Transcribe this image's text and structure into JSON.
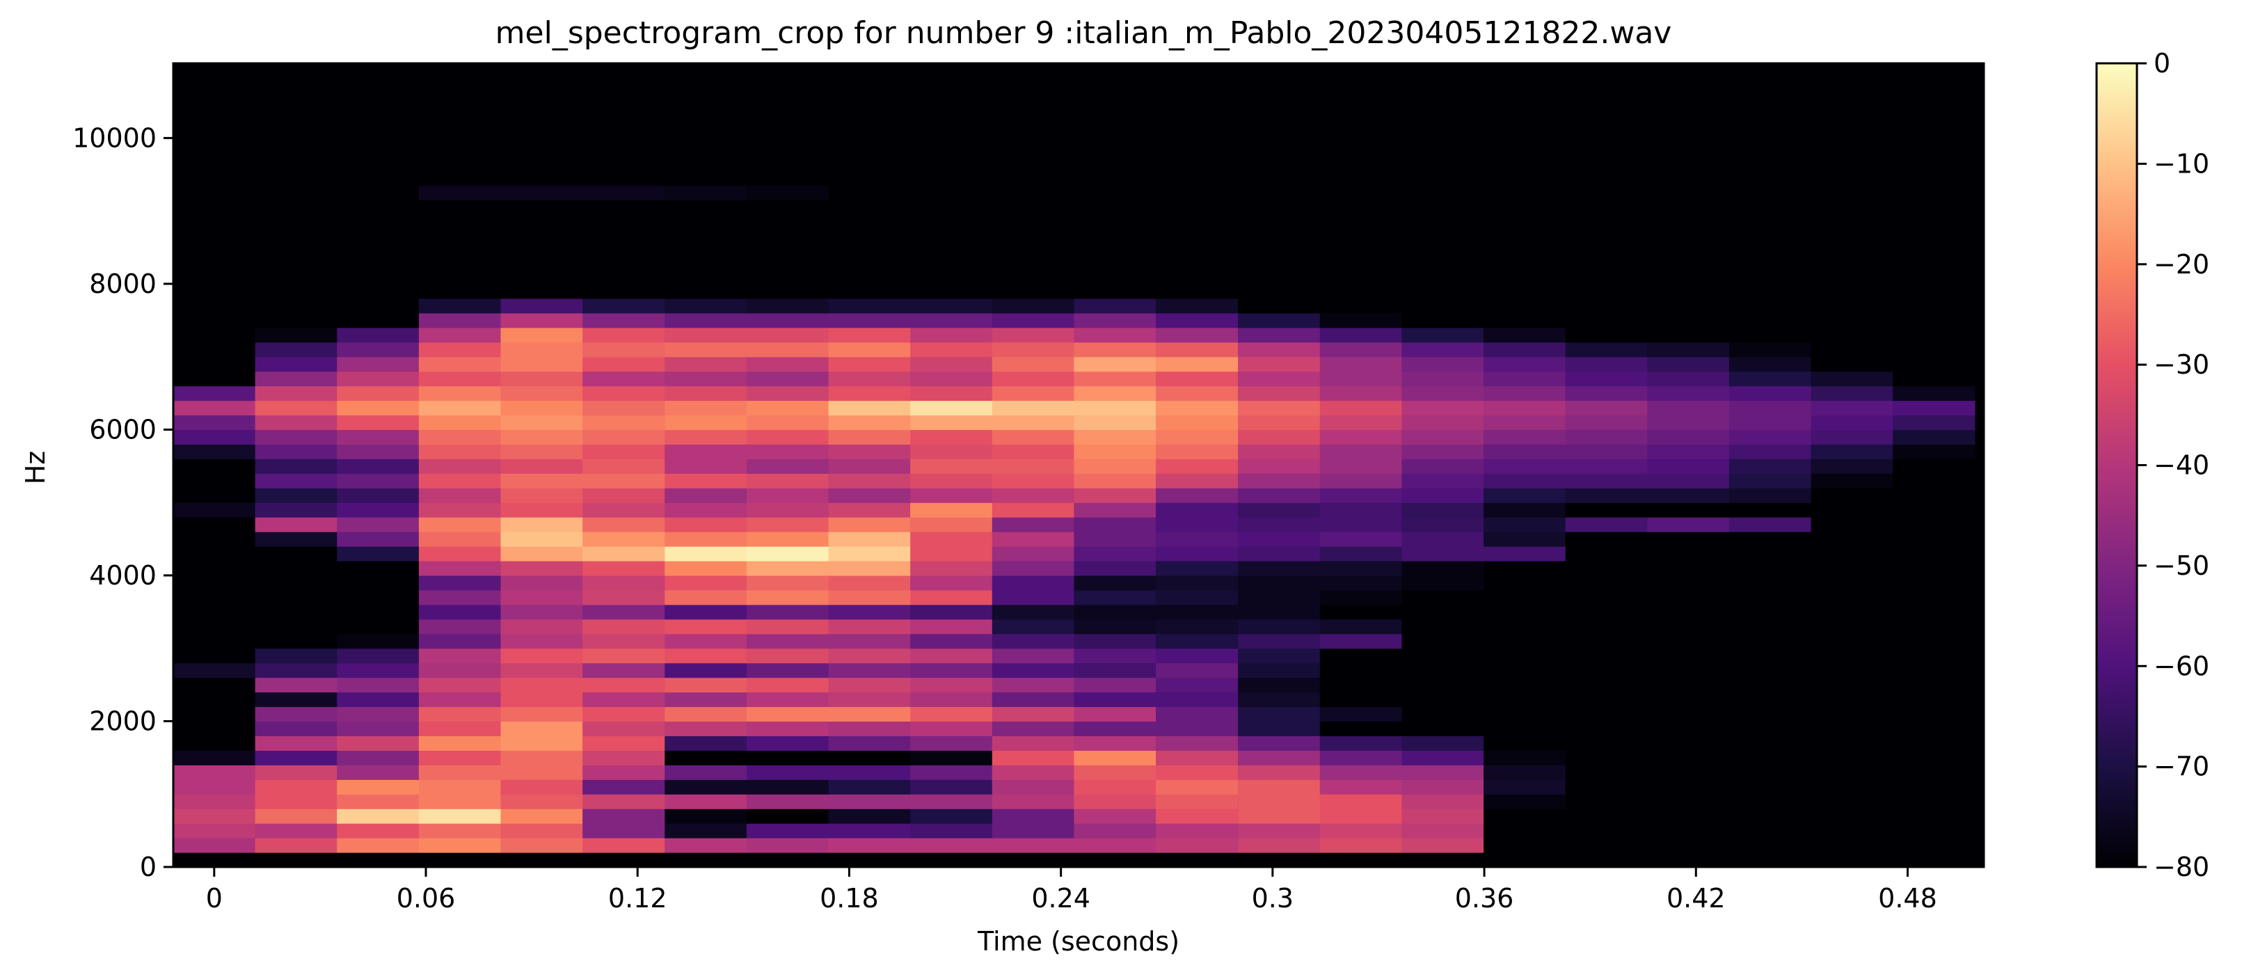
{
  "chart_data": {
    "type": "heatmap",
    "title": "mel_spectrogram_crop for number 9 :italian_m_Pablo_20230405121822.wav",
    "xlabel": "Time (seconds)",
    "ylabel": "Hz",
    "xlim": [
      -0.0116,
      0.5016
    ],
    "ylim": [
      0,
      11025
    ],
    "xticks": [
      "0",
      "0.06",
      "0.12",
      "0.18",
      "0.24",
      "0.3",
      "0.36",
      "0.42",
      "0.48"
    ],
    "xtick_values": [
      0,
      0.06,
      0.12,
      0.18,
      0.24,
      0.3,
      0.36,
      0.42,
      0.48
    ],
    "yticks": [
      "0",
      "2000",
      "4000",
      "6000",
      "8000",
      "10000"
    ],
    "ytick_values": [
      0,
      2000,
      4000,
      6000,
      8000,
      10000
    ],
    "colorbar": {
      "range": [
        -80,
        0
      ],
      "ticks": [
        "0",
        "−10",
        "−20",
        "−30",
        "−40",
        "−50",
        "−60",
        "−70",
        "−80"
      ],
      "tick_values": [
        0,
        -10,
        -20,
        -30,
        -40,
        -50,
        -60,
        -70,
        -80
      ],
      "colormap": "magma"
    },
    "columns_time_start": [
      -0.0116,
      0.0116,
      0.0348,
      0.058,
      0.0812,
      0.1044,
      0.1277,
      0.1509,
      0.1741,
      0.1973,
      0.2205,
      0.2437,
      0.2669,
      0.2902,
      0.3134,
      0.3366,
      0.3598,
      0.383,
      0.4062,
      0.4294,
      0.4526,
      0.4758
    ],
    "column_width_s": 0.02322,
    "bands": [
      {
        "f0": 0,
        "f1": 200,
        "db": [
          -80,
          -80,
          -80,
          -80,
          -80,
          -80,
          -80,
          -80,
          -80,
          -80,
          -80,
          -80,
          -80,
          -80,
          -80,
          -80,
          -80,
          -80,
          -80,
          -80,
          -80,
          -80
        ]
      },
      {
        "f0": 200,
        "f1": 400,
        "db": [
          -42,
          -32,
          -22,
          -20,
          -25,
          -30,
          -40,
          -42,
          -40,
          -40,
          -40,
          -40,
          -38,
          -35,
          -32,
          -35,
          -80,
          -80,
          -80,
          -80,
          -80,
          -80
        ]
      },
      {
        "f0": 400,
        "f1": 600,
        "db": [
          -38,
          -40,
          -30,
          -25,
          -28,
          -50,
          -75,
          -60,
          -60,
          -62,
          -55,
          -45,
          -40,
          -38,
          -35,
          -38,
          -80,
          -80,
          -80,
          -80,
          -80,
          -80
        ]
      },
      {
        "f0": 600,
        "f1": 800,
        "db": [
          -35,
          -25,
          -8,
          -5,
          -20,
          -50,
          -78,
          -80,
          -75,
          -70,
          -55,
          -40,
          -30,
          -28,
          -30,
          -36,
          -80,
          -80,
          -80,
          -80,
          -80,
          -80
        ]
      },
      {
        "f0": 800,
        "f1": 1000,
        "db": [
          -38,
          -30,
          -25,
          -22,
          -28,
          -35,
          -40,
          -45,
          -45,
          -45,
          -40,
          -32,
          -28,
          -28,
          -30,
          -38,
          -78,
          -80,
          -80,
          -80,
          -80,
          -80
        ]
      },
      {
        "f0": 1000,
        "f1": 1200,
        "db": [
          -40,
          -30,
          -20,
          -22,
          -30,
          -55,
          -75,
          -75,
          -70,
          -65,
          -42,
          -30,
          -25,
          -28,
          -40,
          -42,
          -74,
          -80,
          -80,
          -80,
          -80,
          -80
        ]
      },
      {
        "f0": 1200,
        "f1": 1400,
        "db": [
          -40,
          -35,
          -45,
          -25,
          -25,
          -40,
          -55,
          -60,
          -60,
          -55,
          -38,
          -28,
          -30,
          -35,
          -45,
          -45,
          -75,
          -80,
          -80,
          -80,
          -80,
          -80
        ]
      },
      {
        "f0": 1400,
        "f1": 1600,
        "db": [
          -76,
          -60,
          -50,
          -30,
          -25,
          -35,
          -80,
          -80,
          -80,
          -78,
          -30,
          -20,
          -35,
          -45,
          -55,
          -60,
          -78,
          -80,
          -80,
          -80,
          -80,
          -80
        ]
      },
      {
        "f0": 1600,
        "f1": 1800,
        "db": [
          -80,
          -40,
          -35,
          -20,
          -18,
          -30,
          -65,
          -60,
          -55,
          -50,
          -38,
          -40,
          -45,
          -55,
          -65,
          -68,
          -80,
          -80,
          -80,
          -80,
          -80,
          -80
        ]
      },
      {
        "f0": 1800,
        "f1": 2000,
        "db": [
          -80,
          -55,
          -50,
          -30,
          -18,
          -35,
          -38,
          -40,
          -42,
          -40,
          -50,
          -55,
          -55,
          -70,
          -80,
          -80,
          -80,
          -80,
          -80,
          -80,
          -80,
          -80
        ]
      },
      {
        "f0": 2000,
        "f1": 2200,
        "db": [
          -80,
          -50,
          -48,
          -28,
          -25,
          -30,
          -25,
          -22,
          -22,
          -28,
          -35,
          -40,
          -55,
          -70,
          -75,
          -80,
          -80,
          -80,
          -80,
          -80,
          -80,
          -80
        ]
      },
      {
        "f0": 2200,
        "f1": 2400,
        "db": [
          -80,
          -75,
          -60,
          -40,
          -30,
          -40,
          -45,
          -40,
          -38,
          -42,
          -55,
          -60,
          -60,
          -74,
          -80,
          -80,
          -80,
          -80,
          -80,
          -80,
          -80,
          -80
        ]
      },
      {
        "f0": 2400,
        "f1": 2600,
        "db": [
          -80,
          -45,
          -48,
          -35,
          -30,
          -30,
          -28,
          -30,
          -35,
          -38,
          -45,
          -50,
          -58,
          -76,
          -80,
          -80,
          -80,
          -80,
          -80,
          -80,
          -80,
          -80
        ]
      },
      {
        "f0": 2600,
        "f1": 2800,
        "db": [
          -74,
          -65,
          -60,
          -42,
          -35,
          -45,
          -60,
          -55,
          -50,
          -52,
          -60,
          -62,
          -55,
          -72,
          -80,
          -80,
          -80,
          -80,
          -80,
          -80,
          -80,
          -80
        ]
      },
      {
        "f0": 2800,
        "f1": 3000,
        "db": [
          -80,
          -70,
          -65,
          -40,
          -30,
          -28,
          -30,
          -32,
          -35,
          -38,
          -50,
          -58,
          -60,
          -70,
          -80,
          -80,
          -80,
          -80,
          -80,
          -80,
          -80,
          -80
        ]
      },
      {
        "f0": 3000,
        "f1": 3200,
        "db": [
          -80,
          -80,
          -78,
          -55,
          -40,
          -35,
          -40,
          -45,
          -45,
          -55,
          -62,
          -65,
          -70,
          -65,
          -62,
          -80,
          -80,
          -80,
          -80,
          -80,
          -80,
          -80
        ]
      },
      {
        "f0": 3200,
        "f1": 3400,
        "db": [
          -80,
          -80,
          -80,
          -50,
          -38,
          -32,
          -30,
          -32,
          -36,
          -40,
          -70,
          -75,
          -74,
          -72,
          -74,
          -80,
          -80,
          -80,
          -80,
          -80,
          -80,
          -80
        ]
      },
      {
        "f0": 3400,
        "f1": 3600,
        "db": [
          -80,
          -80,
          -80,
          -60,
          -45,
          -50,
          -60,
          -55,
          -58,
          -62,
          -74,
          -76,
          -76,
          -76,
          -80,
          -80,
          -80,
          -80,
          -80,
          -80,
          -80,
          -80
        ]
      },
      {
        "f0": 3600,
        "f1": 3800,
        "db": [
          -80,
          -80,
          -80,
          -50,
          -40,
          -35,
          -25,
          -22,
          -25,
          -30,
          -60,
          -70,
          -72,
          -76,
          -78,
          -80,
          -80,
          -80,
          -80,
          -80,
          -80,
          -80
        ]
      },
      {
        "f0": 3800,
        "f1": 4000,
        "db": [
          -80,
          -80,
          -80,
          -58,
          -42,
          -36,
          -30,
          -26,
          -28,
          -40,
          -60,
          -75,
          -74,
          -76,
          -76,
          -78,
          -80,
          -80,
          -80,
          -80,
          -80,
          -80
        ]
      },
      {
        "f0": 4000,
        "f1": 4200,
        "db": [
          -80,
          -80,
          -80,
          -40,
          -35,
          -30,
          -20,
          -15,
          -15,
          -35,
          -50,
          -62,
          -70,
          -74,
          -74,
          -78,
          -80,
          -80,
          -80,
          -80,
          -80,
          -80
        ]
      },
      {
        "f0": 4200,
        "f1": 4400,
        "db": [
          -80,
          -80,
          -70,
          -30,
          -15,
          -12,
          -3,
          -2,
          -8,
          -30,
          -45,
          -58,
          -60,
          -62,
          -66,
          -62,
          -62,
          -80,
          -80,
          -80,
          -80,
          -80
        ]
      },
      {
        "f0": 4400,
        "f1": 4600,
        "db": [
          -80,
          -74,
          -55,
          -25,
          -10,
          -18,
          -22,
          -20,
          -12,
          -30,
          -40,
          -55,
          -58,
          -60,
          -58,
          -62,
          -74,
          -80,
          -80,
          -80,
          -80,
          -80
        ]
      },
      {
        "f0": 4600,
        "f1": 4800,
        "db": [
          -80,
          -40,
          -48,
          -22,
          -12,
          -25,
          -30,
          -28,
          -22,
          -25,
          -50,
          -55,
          -60,
          -62,
          -62,
          -65,
          -72,
          -62,
          -58,
          -62,
          -80,
          -80
        ]
      },
      {
        "f0": 4800,
        "f1": 5000,
        "db": [
          -76,
          -65,
          -60,
          -35,
          -30,
          -35,
          -40,
          -38,
          -35,
          -20,
          -30,
          -45,
          -60,
          -64,
          -62,
          -66,
          -76,
          -80,
          -80,
          -80,
          -80,
          -80
        ]
      },
      {
        "f0": 5000,
        "f1": 5200,
        "db": [
          -80,
          -70,
          -65,
          -38,
          -28,
          -32,
          -45,
          -40,
          -45,
          -40,
          -38,
          -35,
          -50,
          -55,
          -58,
          -60,
          -70,
          -72,
          -72,
          -74,
          -80,
          -80
        ]
      },
      {
        "f0": 5200,
        "f1": 5400,
        "db": [
          -80,
          -58,
          -55,
          -30,
          -25,
          -25,
          -30,
          -32,
          -35,
          -32,
          -30,
          -25,
          -35,
          -45,
          -48,
          -58,
          -62,
          -62,
          -62,
          -70,
          -78,
          -80
        ]
      },
      {
        "f0": 5400,
        "f1": 5600,
        "db": [
          -80,
          -66,
          -62,
          -35,
          -32,
          -28,
          -40,
          -45,
          -42,
          -28,
          -28,
          -22,
          -30,
          -40,
          -45,
          -55,
          -58,
          -58,
          -60,
          -68,
          -74,
          -80
        ]
      },
      {
        "f0": 5600,
        "f1": 5800,
        "db": [
          -74,
          -56,
          -50,
          -28,
          -26,
          -30,
          -40,
          -40,
          -38,
          -32,
          -30,
          -20,
          -25,
          -38,
          -45,
          -50,
          -55,
          -55,
          -58,
          -62,
          -70,
          -78
        ]
      },
      {
        "f0": 5800,
        "f1": 6000,
        "db": [
          -60,
          -50,
          -45,
          -25,
          -22,
          -25,
          -28,
          -30,
          -25,
          -30,
          -25,
          -18,
          -22,
          -32,
          -40,
          -45,
          -50,
          -52,
          -55,
          -58,
          -62,
          -72
        ]
      },
      {
        "f0": 6000,
        "f1": 6200,
        "db": [
          -55,
          -38,
          -30,
          -20,
          -18,
          -22,
          -20,
          -22,
          -18,
          -15,
          -15,
          -12,
          -20,
          -28,
          -35,
          -42,
          -45,
          -48,
          -52,
          -55,
          -60,
          -65
        ]
      },
      {
        "f0": 6200,
        "f1": 6400,
        "db": [
          -40,
          -28,
          -20,
          -15,
          -20,
          -25,
          -22,
          -20,
          -10,
          -5,
          -10,
          -10,
          -18,
          -26,
          -32,
          -40,
          -42,
          -46,
          -52,
          -55,
          -58,
          -60
        ]
      },
      {
        "f0": 6400,
        "f1": 6600,
        "db": [
          -58,
          -36,
          -28,
          -22,
          -25,
          -30,
          -32,
          -35,
          -30,
          -32,
          -25,
          -18,
          -25,
          -35,
          -42,
          -48,
          -50,
          -55,
          -58,
          -60,
          -66,
          -76
        ]
      },
      {
        "f0": 6600,
        "f1": 6800,
        "db": [
          -80,
          -48,
          -38,
          -30,
          -28,
          -40,
          -42,
          -45,
          -35,
          -38,
          -30,
          -25,
          -30,
          -40,
          -45,
          -50,
          -55,
          -60,
          -62,
          -70,
          -74,
          -80
        ]
      },
      {
        "f0": 6800,
        "f1": 7000,
        "db": [
          -80,
          -60,
          -45,
          -25,
          -22,
          -30,
          -35,
          -38,
          -30,
          -35,
          -25,
          -15,
          -18,
          -35,
          -45,
          -52,
          -58,
          -62,
          -66,
          -75,
          -80,
          -80
        ]
      },
      {
        "f0": 7000,
        "f1": 7200,
        "db": [
          -80,
          -65,
          -55,
          -30,
          -22,
          -26,
          -25,
          -25,
          -22,
          -30,
          -28,
          -25,
          -28,
          -40,
          -50,
          -58,
          -64,
          -72,
          -74,
          -78,
          -80,
          -80
        ]
      },
      {
        "f0": 7200,
        "f1": 7400,
        "db": [
          -80,
          -78,
          -62,
          -40,
          -20,
          -30,
          -32,
          -32,
          -30,
          -38,
          -35,
          -40,
          -45,
          -55,
          -62,
          -70,
          -76,
          -80,
          -80,
          -80,
          -80,
          -80
        ]
      },
      {
        "f0": 7400,
        "f1": 7600,
        "db": [
          -80,
          -80,
          -80,
          -50,
          -40,
          -50,
          -55,
          -55,
          -55,
          -55,
          -58,
          -52,
          -60,
          -70,
          -78,
          -80,
          -80,
          -80,
          -80,
          -80,
          -80,
          -80
        ]
      },
      {
        "f0": 7600,
        "f1": 7800,
        "db": [
          -80,
          -80,
          -80,
          -72,
          -62,
          -70,
          -72,
          -74,
          -72,
          -72,
          -74,
          -68,
          -74,
          -80,
          -80,
          -80,
          -80,
          -80,
          -80,
          -80,
          -80,
          -80
        ]
      },
      {
        "f0": 7800,
        "f1": 9150,
        "db": [
          -80,
          -80,
          -80,
          -80,
          -80,
          -80,
          -80,
          -80,
          -80,
          -80,
          -80,
          -80,
          -80,
          -80,
          -80,
          -80,
          -80,
          -80,
          -80,
          -80,
          -80,
          -80
        ]
      },
      {
        "f0": 9150,
        "f1": 9350,
        "db": [
          -80,
          -80,
          -80,
          -76,
          -76,
          -76,
          -77,
          -78,
          -80,
          -80,
          -80,
          -80,
          -80,
          -80,
          -80,
          -80,
          -80,
          -80,
          -80,
          -80,
          -80,
          -80
        ]
      },
      {
        "f0": 9350,
        "f1": 11025,
        "db": [
          -80,
          -80,
          -80,
          -80,
          -80,
          -80,
          -80,
          -80,
          -80,
          -80,
          -80,
          -80,
          -80,
          -80,
          -80,
          -80,
          -80,
          -80,
          -80,
          -80,
          -80,
          -80
        ]
      }
    ]
  }
}
